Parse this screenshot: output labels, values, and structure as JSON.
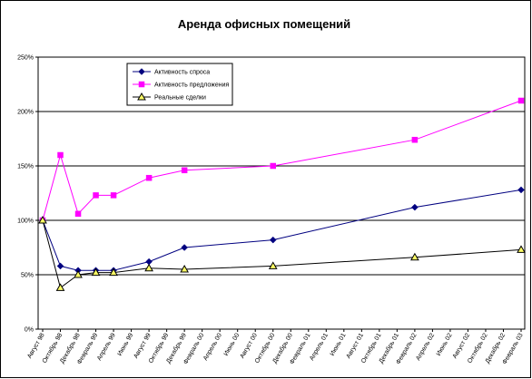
{
  "chart_data": {
    "type": "line",
    "title": "Аренда офисных помещений",
    "xlabel": "",
    "ylabel": "",
    "ylim": [
      0,
      250
    ],
    "y_ticks": [
      0,
      50,
      100,
      150,
      200,
      250
    ],
    "y_tick_labels": [
      "0%",
      "50%",
      "100%",
      "150%",
      "200%",
      "250%"
    ],
    "grid": true,
    "legend_position": "top-left",
    "categories": [
      "Август 98",
      "Октябрь 98",
      "Декабрь 98",
      "Февраль 99",
      "Апрель 99",
      "Июнь 99",
      "Август 99",
      "Октябрь 99",
      "Декабрь 99",
      "Февраль 00",
      "Апрель 00",
      "Июнь 00",
      "Август 00",
      "Октябрь 00",
      "Декабрь 00",
      "Февраль 01",
      "Апрель 01",
      "Июнь 01",
      "Август 01",
      "Октябрь 01",
      "Декабрь 01",
      "Февраль 02",
      "Апрель 02",
      "Июнь 02",
      "Август 02",
      "Октябрь 02",
      "Декабрь 02",
      "Февраль 03"
    ],
    "series": [
      {
        "name": "Активность спроса",
        "color": "#000080",
        "marker": "diamond",
        "points": [
          [
            0,
            100
          ],
          [
            1,
            58
          ],
          [
            2,
            54
          ],
          [
            3,
            54
          ],
          [
            4,
            54
          ],
          [
            7,
            62
          ],
          [
            9,
            75
          ],
          [
            12,
            82
          ],
          [
            18,
            112
          ],
          [
            24,
            128
          ]
        ]
      },
      {
        "name": "Активность предложения",
        "color": "#ff00ff",
        "marker": "square",
        "points": [
          [
            0,
            100
          ],
          [
            1,
            160
          ],
          [
            2,
            106
          ],
          [
            3,
            123
          ],
          [
            4,
            123
          ],
          [
            7,
            139
          ],
          [
            9,
            146
          ],
          [
            12,
            150
          ],
          [
            18,
            174
          ],
          [
            24,
            210
          ]
        ]
      },
      {
        "name": "Реальные сделки",
        "color": "#000000",
        "marker": "triangle",
        "points": [
          [
            0,
            100
          ],
          [
            1,
            38
          ],
          [
            2,
            50
          ],
          [
            3,
            52
          ],
          [
            4,
            52
          ],
          [
            7,
            56
          ],
          [
            9,
            55
          ],
          [
            12,
            58
          ],
          [
            18,
            66
          ],
          [
            24,
            73
          ]
        ]
      }
    ]
  },
  "chart_x_positions_note": ""
}
